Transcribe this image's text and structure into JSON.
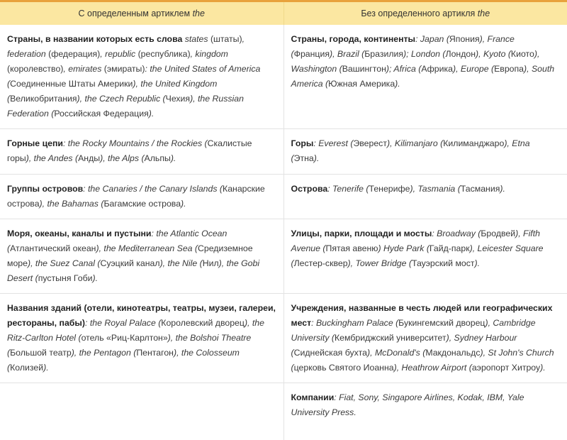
{
  "header": {
    "col1": {
      "text": "С определенным артиклем ",
      "em": "the"
    },
    "col2": {
      "text": "Без определенного артикля ",
      "em": "the"
    }
  },
  "rows": [
    {
      "left": [
        [
          "b",
          "Страны, в названии которых есть слова "
        ],
        [
          "i",
          "states"
        ],
        [
          "n",
          " (штаты)"
        ],
        [
          "i",
          ", federation"
        ],
        [
          "n",
          " (федерация)"
        ],
        [
          "i",
          ", republic"
        ],
        [
          "n",
          " (республика)"
        ],
        [
          "i",
          ", kingdom"
        ],
        [
          "n",
          " (королевство)"
        ],
        [
          "i",
          ", emirates"
        ],
        [
          "n",
          " (эмираты)"
        ],
        [
          "i",
          ": the United States of America ("
        ],
        [
          "n",
          "Соединенные Штаты Америки"
        ],
        [
          "i",
          "), the United Kingdom ("
        ],
        [
          "n",
          "Великобритания"
        ],
        [
          "i",
          "), the Czech Republic ("
        ],
        [
          "n",
          "Чехия"
        ],
        [
          "i",
          "), the Russian Federation ("
        ],
        [
          "n",
          "Российская Федерация"
        ],
        [
          "i",
          ")."
        ]
      ],
      "right": [
        [
          "b",
          "Страны, города, континенты"
        ],
        [
          "i",
          ": Japan ("
        ],
        [
          "n",
          "Япония"
        ],
        [
          "i",
          "), France ("
        ],
        [
          "n",
          "Франция"
        ],
        [
          "i",
          "), Brazil ("
        ],
        [
          "n",
          "Бразилия"
        ],
        [
          "i",
          "); London ("
        ],
        [
          "n",
          "Лондон"
        ],
        [
          "i",
          "), Kyoto ("
        ],
        [
          "n",
          "Киото"
        ],
        [
          "i",
          "), Washington ("
        ],
        [
          "n",
          "Вашингтон"
        ],
        [
          "i",
          "); Africa ("
        ],
        [
          "n",
          "Африка"
        ],
        [
          "i",
          "), Europe ("
        ],
        [
          "n",
          "Европа"
        ],
        [
          "i",
          "), South America ("
        ],
        [
          "n",
          "Южная Америка"
        ],
        [
          "i",
          ")."
        ]
      ]
    },
    {
      "left": [
        [
          "b",
          "Горные цепи"
        ],
        [
          "i",
          ": the Rocky Mountains / the Rockies ("
        ],
        [
          "n",
          "Скалистые горы"
        ],
        [
          "i",
          "), the Andes ("
        ],
        [
          "n",
          "Анды"
        ],
        [
          "i",
          "), the Alps ("
        ],
        [
          "n",
          "Альпы"
        ],
        [
          "i",
          ")."
        ]
      ],
      "right": [
        [
          "b",
          "Горы"
        ],
        [
          "i",
          ": Everest ("
        ],
        [
          "n",
          "Эверест"
        ],
        [
          "i",
          "), Kilimanjaro ("
        ],
        [
          "n",
          "Килиманджаро"
        ],
        [
          "i",
          "), Etna ("
        ],
        [
          "n",
          "Этна"
        ],
        [
          "i",
          ")."
        ]
      ]
    },
    {
      "left": [
        [
          "b",
          "Группы островов"
        ],
        [
          "i",
          ": the Canaries / the Canary Islands ("
        ],
        [
          "n",
          "Канарские острова"
        ],
        [
          "i",
          "), the Bahamas ("
        ],
        [
          "n",
          "Багамские острова"
        ],
        [
          "i",
          ")."
        ]
      ],
      "right": [
        [
          "b",
          "Острова"
        ],
        [
          "i",
          ": Tenerife ("
        ],
        [
          "n",
          "Тенерифе"
        ],
        [
          "i",
          "), Tasmania ("
        ],
        [
          "n",
          "Тасмания"
        ],
        [
          "i",
          ")."
        ]
      ]
    },
    {
      "left": [
        [
          "b",
          "Моря, океаны, каналы и пустыни"
        ],
        [
          "i",
          ": the Atlantic Ocean ("
        ],
        [
          "n",
          "Атлантический океан"
        ],
        [
          "i",
          "), the Mediterranean Sea ("
        ],
        [
          "n",
          "Средиземное море"
        ],
        [
          "i",
          "), the Suez Canal ("
        ],
        [
          "n",
          "Суэцкий канал"
        ],
        [
          "i",
          "), the Nile ("
        ],
        [
          "n",
          "Нил"
        ],
        [
          "i",
          "), the Gobi Desert ("
        ],
        [
          "n",
          "пустыня Гоби"
        ],
        [
          "i",
          ")."
        ]
      ],
      "right": [
        [
          "b",
          "Улицы, парки, площади и мосты"
        ],
        [
          "i",
          ": Broadway ("
        ],
        [
          "n",
          "Бродвей"
        ],
        [
          "i",
          "), Fifth Avenue ("
        ],
        [
          "n",
          "Пятая авеню"
        ],
        [
          "i",
          ") Hyde Park ("
        ],
        [
          "n",
          "Гайд-парк"
        ],
        [
          "i",
          "), Leicester Square ("
        ],
        [
          "n",
          "Лестер-сквер"
        ],
        [
          "i",
          "), Tower Bridge ("
        ],
        [
          "n",
          "Тауэрский мост"
        ],
        [
          "i",
          ")."
        ]
      ]
    },
    {
      "left": [
        [
          "b",
          "Названия зданий (отели, кинотеатры, театры, музеи, галереи, рестораны, пабы)"
        ],
        [
          "i",
          ": the Royal Palace ("
        ],
        [
          "n",
          "Королевский дворец"
        ],
        [
          "i",
          "), the Ritz-Carlton Hotel ("
        ],
        [
          "n",
          "отель «Риц-Карлтон»"
        ],
        [
          "i",
          "), the Bolshoi Theatre ("
        ],
        [
          "n",
          "Большой театр"
        ],
        [
          "i",
          "), the Pentagon ("
        ],
        [
          "n",
          "Пентагон"
        ],
        [
          "i",
          "), the Colosseum ("
        ],
        [
          "n",
          "Колизей"
        ],
        [
          "i",
          ")."
        ]
      ],
      "right": [
        [
          "b",
          "Учреждения, названные в честь людей или географических мест"
        ],
        [
          "i",
          ": Buckingham Palace ("
        ],
        [
          "n",
          "Букингемский дворец"
        ],
        [
          "i",
          "), Cambridge University ("
        ],
        [
          "n",
          "Кембриджский университет"
        ],
        [
          "i",
          "), Sydney Harbour ("
        ],
        [
          "n",
          "Сиднейская бухта"
        ],
        [
          "i",
          "), McDonald's ("
        ],
        [
          "n",
          "Макдональдс"
        ],
        [
          "i",
          "), St John's Church ("
        ],
        [
          "n",
          "церковь Святого Иоанна"
        ],
        [
          "i",
          "), Heathrow Airport ("
        ],
        [
          "n",
          "аэропорт Хитроу"
        ],
        [
          "i",
          ")."
        ]
      ]
    },
    {
      "left": [],
      "right": [
        [
          "b",
          "Компании"
        ],
        [
          "i",
          ": Fiat, Sony, Singapore Airlines, Kodak, IBM, Yale University Press."
        ]
      ]
    }
  ]
}
